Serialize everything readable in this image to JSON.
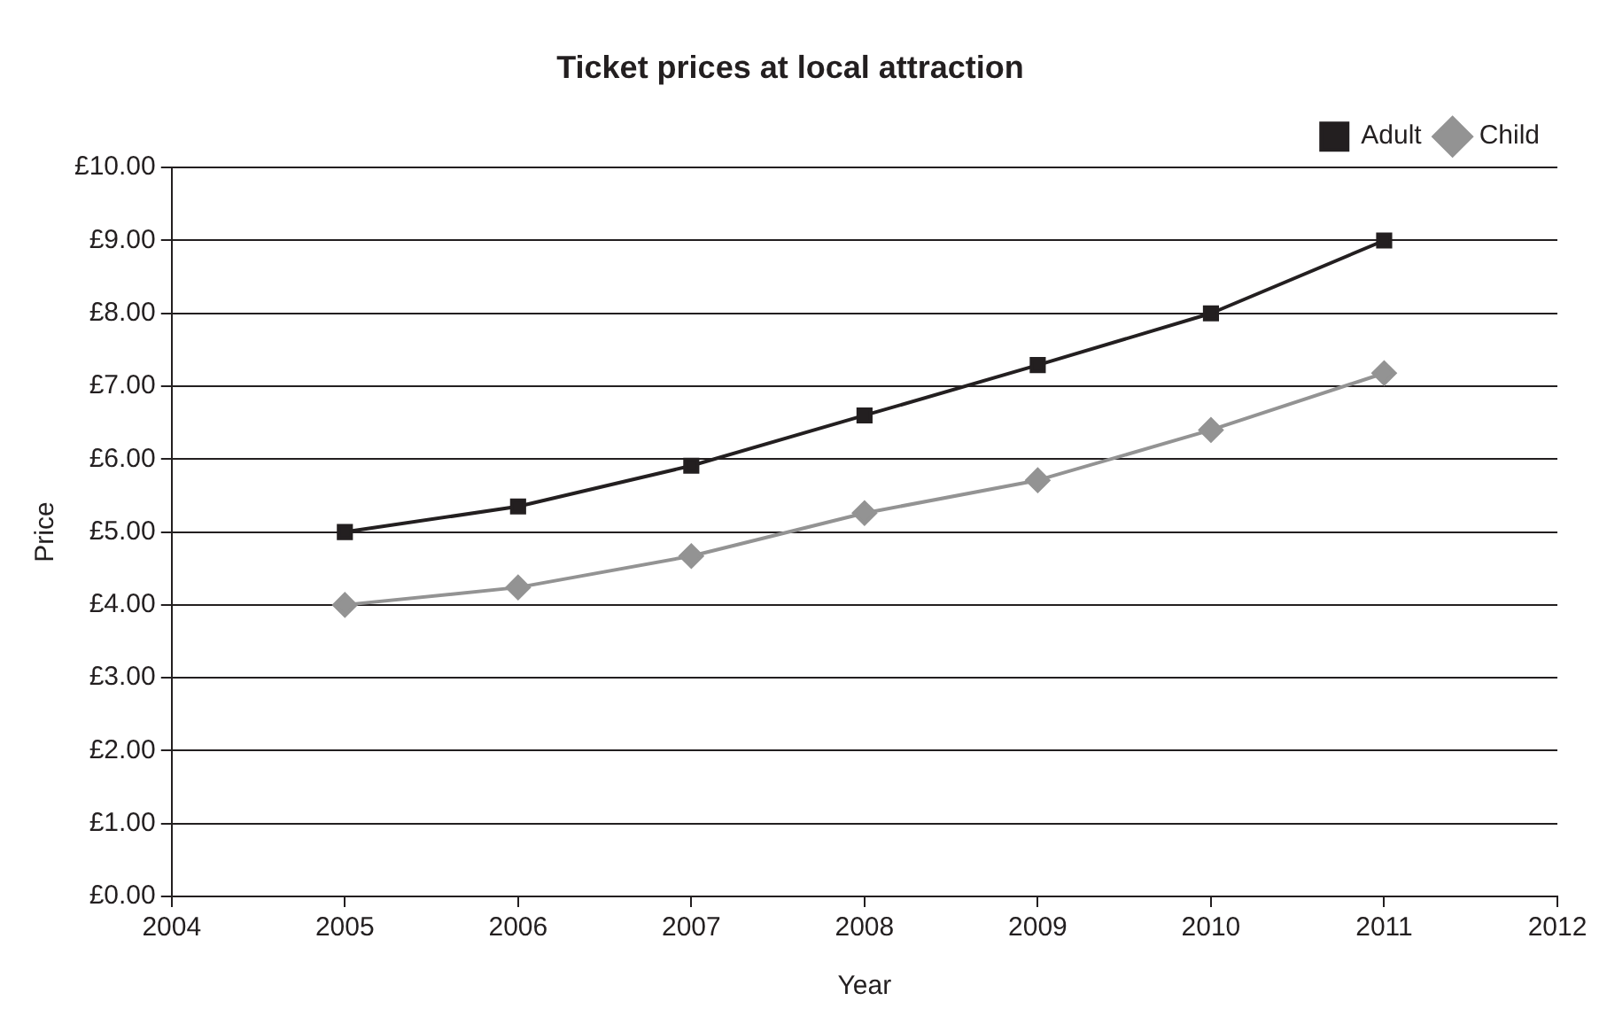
{
  "chart_data": {
    "type": "line",
    "title": "Ticket prices at local attraction",
    "xlabel": "Year",
    "ylabel": "Price",
    "x": [
      2005,
      2006,
      2007,
      2008,
      2009,
      2010,
      2011
    ],
    "series": [
      {
        "name": "Adult",
        "color": "#231f20",
        "marker": "square",
        "values": [
          5.0,
          5.35,
          5.91,
          6.6,
          7.29,
          8.0,
          9.0
        ]
      },
      {
        "name": "Child",
        "color": "#939393",
        "marker": "diamond",
        "values": [
          4.0,
          4.24,
          4.67,
          5.26,
          5.71,
          6.4,
          7.18
        ]
      }
    ],
    "xlim": [
      2004,
      2012
    ],
    "xticks": [
      2004,
      2005,
      2006,
      2007,
      2008,
      2009,
      2010,
      2011,
      2012
    ],
    "ylim": [
      0,
      10
    ],
    "yticks": [
      {
        "value": 0,
        "label": "£0.00"
      },
      {
        "value": 1,
        "label": "£1.00"
      },
      {
        "value": 2,
        "label": "£2.00"
      },
      {
        "value": 3,
        "label": "£3.00"
      },
      {
        "value": 4,
        "label": "£4.00"
      },
      {
        "value": 5,
        "label": "£5.00"
      },
      {
        "value": 6,
        "label": "£6.00"
      },
      {
        "value": 7,
        "label": "£7.00"
      },
      {
        "value": 8,
        "label": "£8.00"
      },
      {
        "value": 9,
        "label": "£9.00"
      },
      {
        "value": 10,
        "label": "£10.00"
      }
    ],
    "grid": "y",
    "legend": "top right",
    "line_style": "solid"
  }
}
